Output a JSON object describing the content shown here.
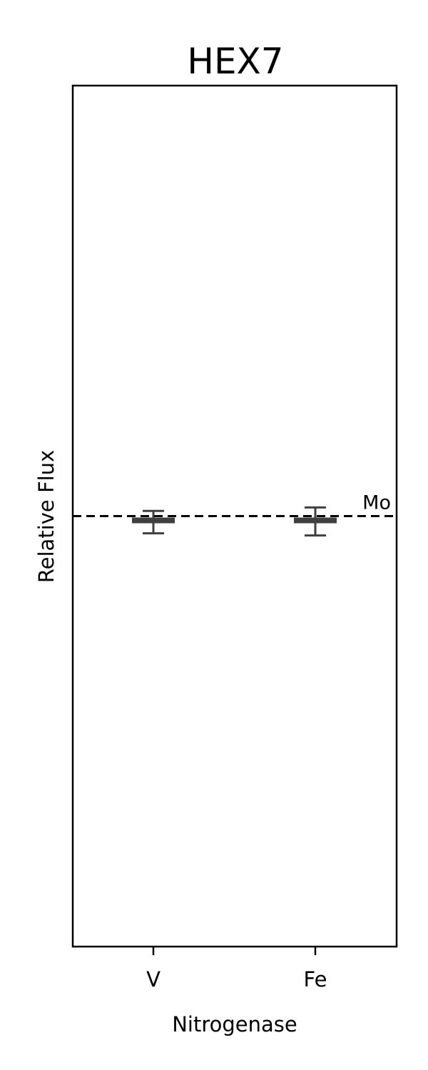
{
  "chart_data": {
    "type": "bar",
    "title": "HEX7",
    "xlabel": "Nitrogenase",
    "ylabel": "Relative Flux",
    "categories": [
      "V",
      "Fe"
    ],
    "values": [
      0.99,
      0.99
    ],
    "errors_low": [
      0.96,
      0.955
    ],
    "errors_high": [
      1.012,
      1.02
    ],
    "ylim": [
      0,
      2
    ],
    "reference_line": {
      "value": 1.0,
      "label": "Mo",
      "style": "dashed"
    },
    "grid": false,
    "colors": {
      "bar": "#3f3f3f",
      "error": "#3f3f3f",
      "reference": "#000000",
      "frame": "#000000"
    }
  }
}
